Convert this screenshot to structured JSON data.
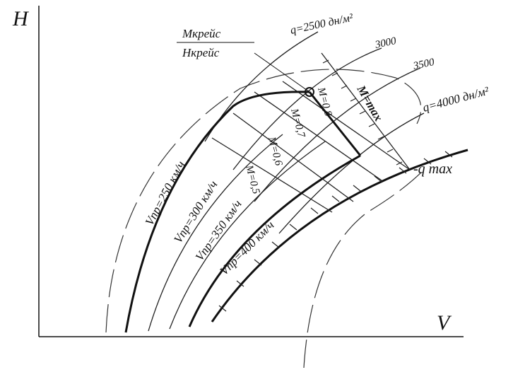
{
  "axes": {
    "y_label": "H",
    "x_label": "V"
  },
  "cruise": {
    "mach": "Мкрейс",
    "height": "Нкрейс"
  },
  "q_lines": [
    {
      "label": "q=2500 дн/м²"
    },
    {
      "label": "3000"
    },
    {
      "label": "3500"
    },
    {
      "label": "q=4000 дн/м²"
    }
  ],
  "q_max": {
    "label": "-q max"
  },
  "mach_lines": [
    {
      "label": "M=max"
    },
    {
      "label": "M=0,8"
    },
    {
      "label": "M=0,7"
    },
    {
      "label": "M=0,6"
    },
    {
      "label": "M=0,5"
    }
  ],
  "speed_lines": [
    {
      "label": "Vпр=250 км/ч"
    },
    {
      "label": "Vпр=300 км/ч"
    },
    {
      "label": "Vпр=350 км/ч"
    },
    {
      "label": "Vпр=400 км/ч"
    }
  ]
}
